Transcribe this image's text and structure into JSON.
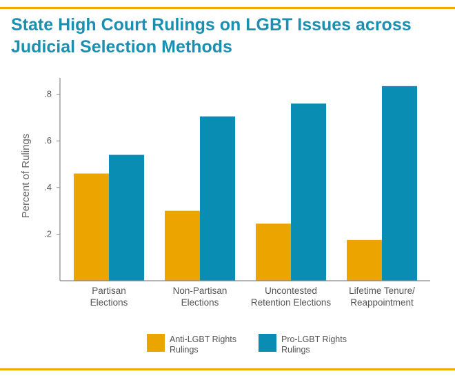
{
  "colors": {
    "anti": "#eca500",
    "pro": "#0a8db3",
    "accent": "#f0a900",
    "title": "#1a8fb0"
  },
  "chart_data": {
    "type": "bar",
    "title": "State High Court Rulings on LGBT Issues across Judicial Selection Methods",
    "ylabel": "Percent of Rulings",
    "xlabel": "",
    "ylim": [
      0,
      0.87
    ],
    "yticks": [
      {
        "value": 0.2,
        "label": ".2"
      },
      {
        "value": 0.4,
        "label": ".4"
      },
      {
        "value": 0.6,
        "label": ".6"
      },
      {
        "value": 0.8,
        "label": ".8"
      }
    ],
    "categories": [
      {
        "lines": [
          "Partisan",
          "Elections"
        ]
      },
      {
        "lines": [
          "Non-Partisan",
          "Elections"
        ]
      },
      {
        "lines": [
          "Uncontested",
          "Retention Elections"
        ]
      },
      {
        "lines": [
          "Lifetime Tenure/",
          "Reappointment"
        ]
      }
    ],
    "series": [
      {
        "name": "Anti-LGBT Rights Rulings",
        "legend_lines": [
          "Anti-LGBT Rights",
          "Rulings"
        ],
        "values": [
          0.46,
          0.3,
          0.245,
          0.175
        ]
      },
      {
        "name": "Pro-LGBT Rights Rulings",
        "legend_lines": [
          "Pro-LGBT Rights",
          "Rulings"
        ],
        "values": [
          0.54,
          0.705,
          0.76,
          0.835
        ]
      }
    ],
    "legend": "bottom-center",
    "grid": false
  }
}
